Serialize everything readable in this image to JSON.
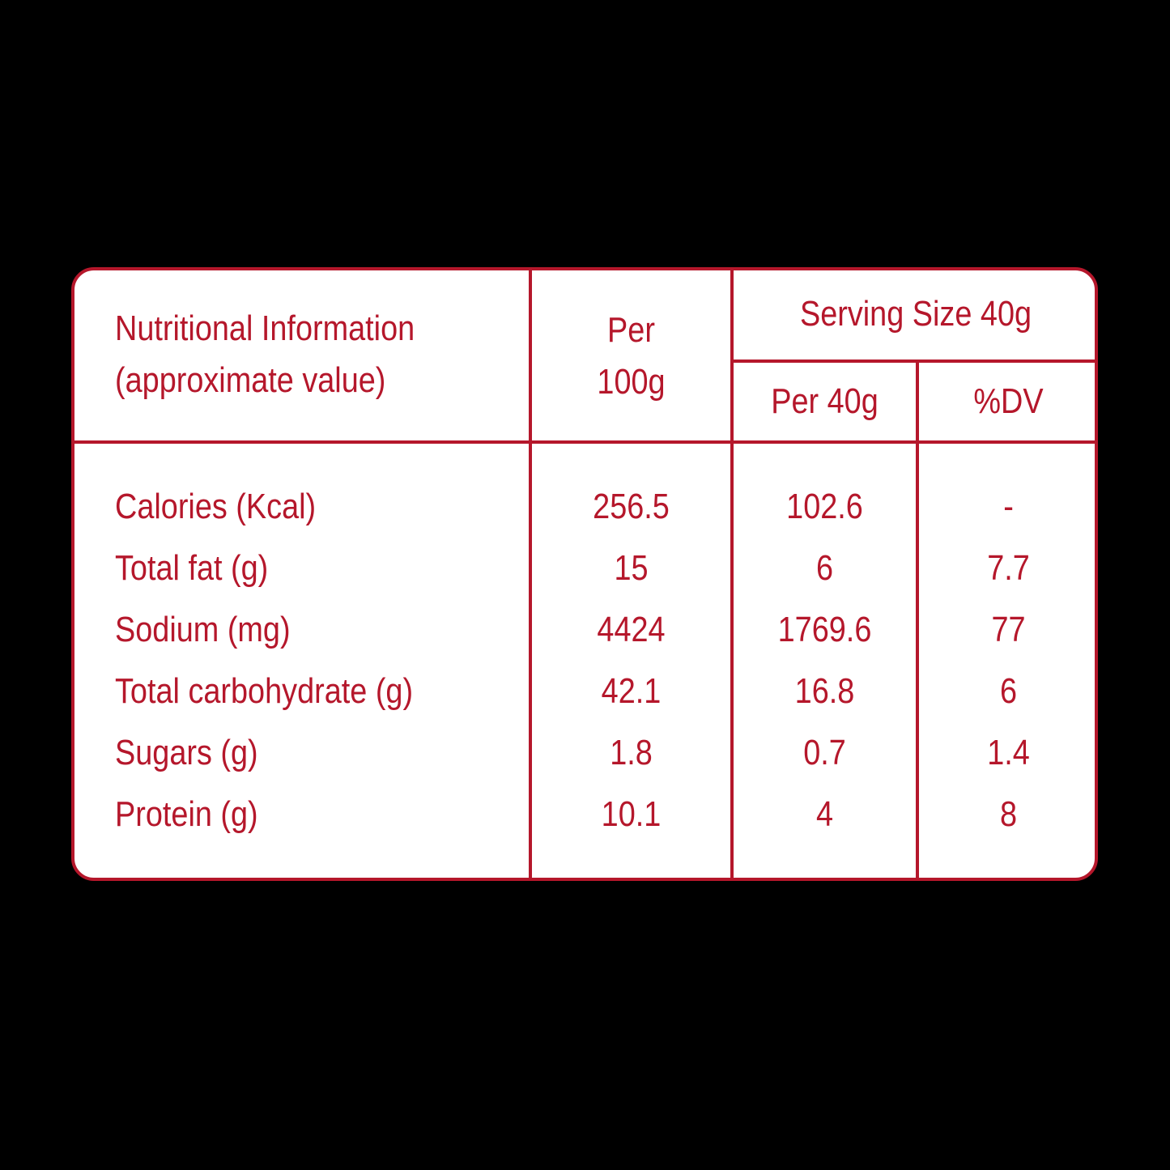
{
  "table": {
    "header": {
      "title_line1": "Nutritional Information",
      "title_line2": "(approximate value)",
      "per100_line1": "Per",
      "per100_line2": "100g",
      "serving_size": "Serving Size 40g",
      "per40": "Per 40g",
      "dv": "%DV"
    },
    "rows": [
      {
        "label": "Calories (Kcal)",
        "per100": "256.5",
        "per40": "102.6",
        "dv": "-"
      },
      {
        "label": "Total fat (g)",
        "per100": "15",
        "per40": "6",
        "dv": "7.7"
      },
      {
        "label": "Sodium (mg)",
        "per100": "4424",
        "per40": "1769.6",
        "dv": "77"
      },
      {
        "label": "Total carbohydrate (g)",
        "per100": "42.1",
        "per40": "16.8",
        "dv": "6"
      },
      {
        "label": "Sugars (g)",
        "per100": "1.8",
        "per40": "0.7",
        "dv": "1.4"
      },
      {
        "label": "Protein (g)",
        "per100": "10.1",
        "per40": "4",
        "dv": "8"
      }
    ],
    "accent_color": "#b5172b"
  }
}
